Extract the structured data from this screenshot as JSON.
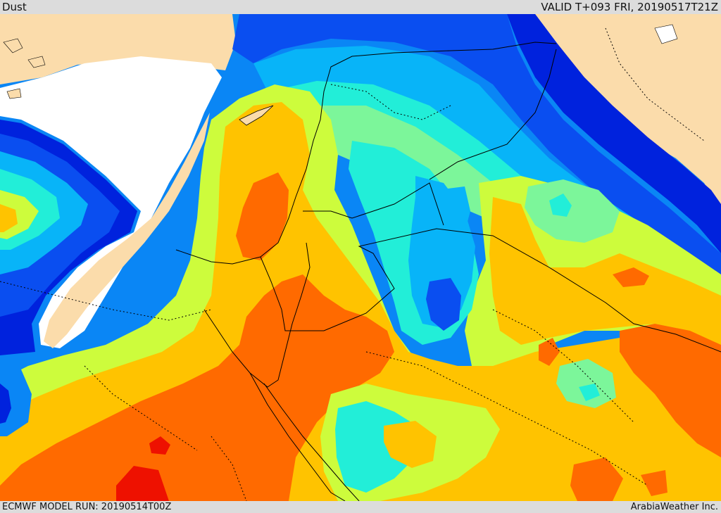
{
  "header": {
    "product": "Dust",
    "valid": "VALID T+093 FRI, 20190517T21Z"
  },
  "footer": {
    "model_run": "ECMWF MODEL RUN: 20190514T00Z",
    "credit": "ArabiaWeather Inc."
  },
  "palette": {
    "land": "#fbdcab",
    "sea": "#ffffff",
    "blue_deep": "#0022dd",
    "blue": "#0a4ef0",
    "blue_mid": "#0a86f5",
    "sky": "#08b4f8",
    "cyan": "#22eed8",
    "mint": "#7cf69a",
    "yellow_green": "#cdfc3c",
    "amber": "#ffc300",
    "orange": "#ff6a00",
    "red": "#ee1100"
  }
}
